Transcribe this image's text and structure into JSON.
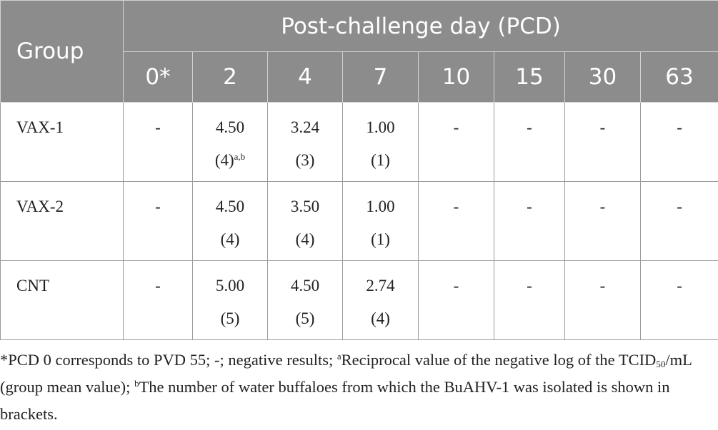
{
  "table": {
    "header": {
      "group": "Group",
      "span": "Post-challenge day (PCD)",
      "days": [
        "0*",
        "2",
        "4",
        "7",
        "10",
        "15",
        "30",
        "63"
      ]
    },
    "rows": [
      {
        "group": "VAX-1",
        "cells": [
          {
            "value": "-",
            "count": ""
          },
          {
            "value": "4.50",
            "count": "(4)",
            "sup": "a,b"
          },
          {
            "value": "3.24",
            "count": "(3)"
          },
          {
            "value": "1.00",
            "count": "(1)"
          },
          {
            "value": "-",
            "count": ""
          },
          {
            "value": "-",
            "count": ""
          },
          {
            "value": "-",
            "count": ""
          },
          {
            "value": "-",
            "count": ""
          }
        ]
      },
      {
        "group": "VAX-2",
        "cells": [
          {
            "value": "-",
            "count": ""
          },
          {
            "value": "4.50",
            "count": "(4)"
          },
          {
            "value": "3.50",
            "count": "(4)"
          },
          {
            "value": "1.00",
            "count": "(1)"
          },
          {
            "value": "-",
            "count": ""
          },
          {
            "value": "-",
            "count": ""
          },
          {
            "value": "-",
            "count": ""
          },
          {
            "value": "-",
            "count": ""
          }
        ]
      },
      {
        "group": "CNT",
        "cells": [
          {
            "value": "-",
            "count": ""
          },
          {
            "value": "5.00",
            "count": "(5)"
          },
          {
            "value": "4.50",
            "count": "(5)"
          },
          {
            "value": "2.74",
            "count": "(4)"
          },
          {
            "value": "-",
            "count": ""
          },
          {
            "value": "-",
            "count": ""
          },
          {
            "value": "-",
            "count": ""
          },
          {
            "value": "-",
            "count": ""
          }
        ]
      }
    ]
  },
  "footnote": {
    "part1": "*PCD 0 corresponds to PVD 55; -; negative results; ",
    "sup_a": "a",
    "part2": "Reciprocal value of the negative log of the TCID",
    "sub_50": "50",
    "part3": "/mL (group mean value); ",
    "sup_b": "b",
    "part4": "The number of water buffaloes from which the BuAHV-1 was isolated is shown in brackets."
  },
  "colors": {
    "header_bg": "#8c8c8c",
    "header_text": "#ffffff",
    "border": "#9a9a9a",
    "text": "#222222"
  }
}
